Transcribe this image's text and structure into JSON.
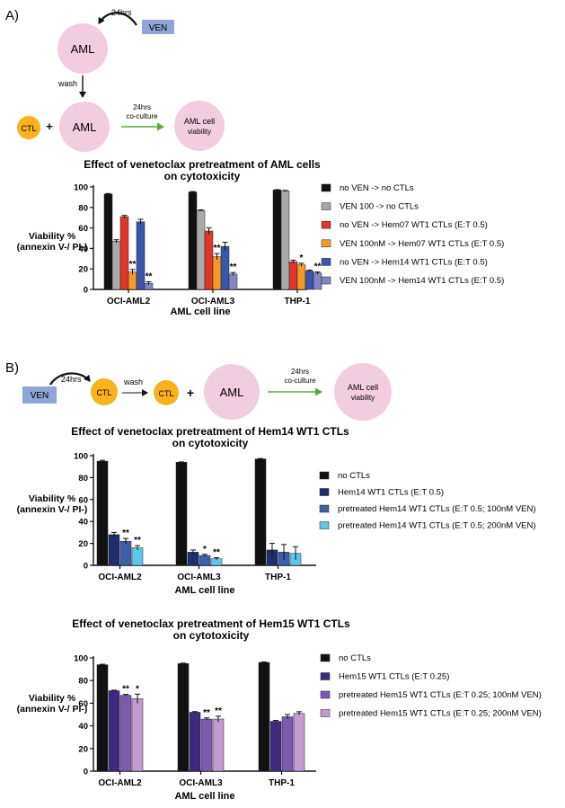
{
  "panel_a": {
    "label": "A)",
    "schematic": {
      "aml_top": "AML",
      "hrs_top": "24hrs",
      "ven": "VEN",
      "wash": "wash",
      "ctl": "CTL",
      "plus": "+",
      "aml_bottom": "AML",
      "coculture_hrs": "24hrs",
      "coculture": "co-culture",
      "viability_l1": "AML cell",
      "viability_l2": "viability"
    }
  },
  "panel_b": {
    "label": "B)",
    "schematic": {
      "ven": "VEN",
      "hrs": "24hrs",
      "ctl1": "CTL",
      "wash": "wash",
      "ctl2": "CTL",
      "plus": "+",
      "aml": "AML",
      "coculture_hrs": "24hrs",
      "coculture": "co-culture",
      "viability_l1": "AML cell",
      "viability_l2": "viability"
    }
  },
  "colors": {
    "aml_circle": "#f2cde0",
    "ctl_circle": "#f7b21c",
    "ven_box": "#8ea5d5",
    "arrow_green": "#58a83e"
  },
  "chart_data": [
    {
      "type": "bar",
      "title": [
        "Effect of venetoclax pretreatment of AML cells",
        "on cytotoxicity"
      ],
      "xlabel": "AML cell line",
      "ylabel": [
        "Viability %",
        "(annexin V-/ PI-)"
      ],
      "ylim": [
        0,
        100
      ],
      "yticks": [
        "0",
        "20",
        "40",
        "60",
        "80",
        "100"
      ],
      "categories": [
        "OCI-AML2",
        "OCI-AML3",
        "THP-1"
      ],
      "legend_position": "right",
      "series": [
        {
          "name": "no VEN -> no CTLs",
          "color": "#111111",
          "values": [
            93,
            95,
            97
          ],
          "errors": [
            0.6,
            0.5,
            0.4
          ],
          "sig": [
            "",
            "",
            ""
          ]
        },
        {
          "name": "VEN 100 -> no CTLs",
          "color": "#a9a9a9",
          "values": [
            47,
            77,
            96
          ],
          "errors": [
            1.5,
            0.6,
            0.6
          ],
          "sig": [
            "",
            "",
            ""
          ]
        },
        {
          "name": "no VEN -> Hem07 WT1 CTLs (E:T 0.5)",
          "color": "#e0352b",
          "values": [
            71,
            57,
            27
          ],
          "errors": [
            1.2,
            3,
            1.5
          ],
          "sig": [
            "",
            "",
            ""
          ]
        },
        {
          "name": "VEN 100nM -> Hem07 WT1 CTLs (E:T 0.5)",
          "color": "#f39a2a",
          "values": [
            17,
            32,
            24
          ],
          "errors": [
            2.5,
            3,
            1.5
          ],
          "sig": [
            "**",
            "**",
            "*"
          ]
        },
        {
          "name": "no VEN -> Hem14 WT1 CTLs (E:T 0.5)",
          "color": "#3a56a8",
          "values": [
            66,
            42,
            18
          ],
          "errors": [
            2.5,
            4,
            0.8
          ],
          "sig": [
            "",
            "",
            ""
          ]
        },
        {
          "name": "VEN 100nM -> Hem14 WT1 CTLs (E:T 0.5)",
          "color": "#8088c4",
          "values": [
            6,
            15,
            16
          ],
          "errors": [
            1.5,
            1.5,
            1
          ],
          "sig": [
            "**",
            "**",
            "**"
          ]
        }
      ]
    },
    {
      "type": "bar",
      "title": [
        "Effect of venetoclax pretreatment of Hem14 WT1 CTLs",
        "on cytotoxicity"
      ],
      "xlabel": "AML cell line",
      "ylabel": [
        "Viability %",
        "(annexin V-/ PI-)"
      ],
      "ylim": [
        0,
        100
      ],
      "yticks": [
        "0",
        "20",
        "40",
        "60",
        "80",
        "100"
      ],
      "categories": [
        "OCI-AML2",
        "OCI-AML3",
        "THP-1"
      ],
      "legend_position": "right",
      "series": [
        {
          "name": "no CTLs",
          "color": "#111111",
          "values": [
            95,
            94,
            97
          ],
          "errors": [
            0.8,
            0.3,
            0.4
          ],
          "sig": [
            "",
            "",
            ""
          ]
        },
        {
          "name": "Hem14 WT1 CTLs (E:T 0.5)",
          "color": "#1e2e6e",
          "values": [
            28,
            12,
            14
          ],
          "errors": [
            2,
            2,
            6
          ],
          "sig": [
            "",
            "",
            ""
          ]
        },
        {
          "name": "pretreated Hem14 WT1 CTLs (E:T 0.5; 100nM VEN)",
          "color": "#3f5fa8",
          "values": [
            22,
            9,
            12
          ],
          "errors": [
            2.5,
            1,
            7
          ],
          "sig": [
            "**",
            "*",
            ""
          ]
        },
        {
          "name": "pretreated Hem14 WT1 CTLs (E:T 0.5; 200nM VEN)",
          "color": "#5ec6ea",
          "values": [
            16,
            6,
            11
          ],
          "errors": [
            2,
            1,
            6
          ],
          "sig": [
            "**",
            "**",
            ""
          ]
        }
      ]
    },
    {
      "type": "bar",
      "title": [
        "Effect of venetoclax pretreatment of Hem15 WT1 CTLs",
        "on cytotoxicity"
      ],
      "xlabel": "AML cell line",
      "ylabel": [
        "Viability %",
        "(annexin V-/ PI-)"
      ],
      "ylim": [
        0,
        100
      ],
      "yticks": [
        "0",
        "20",
        "40",
        "60",
        "80",
        "100"
      ],
      "categories": [
        "OCI-AML2",
        "OCI-AML3",
        "THP-1"
      ],
      "legend_position": "right",
      "series": [
        {
          "name": "no CTLs",
          "color": "#111111",
          "values": [
            94,
            95,
            96
          ],
          "errors": [
            0.4,
            0.4,
            0.4
          ],
          "sig": [
            "",
            "",
            ""
          ]
        },
        {
          "name": "Hem15 WT1 CTLs (E:T 0.25)",
          "color": "#3e2a7e",
          "values": [
            71,
            52,
            44
          ],
          "errors": [
            0.5,
            0.6,
            0.8
          ],
          "sig": [
            "",
            "",
            ""
          ]
        },
        {
          "name": "pretreated Hem15 WT1 CTLs (E:T 0.25; 100nM VEN)",
          "color": "#7a5bb0",
          "values": [
            67,
            46,
            48
          ],
          "errors": [
            0.8,
            1,
            2
          ],
          "sig": [
            "**",
            "**",
            ""
          ]
        },
        {
          "name": "pretreated Hem15 WT1 CTLs (E:T 0.25; 200nM VEN)",
          "color": "#c29bd0",
          "values": [
            64,
            46,
            51
          ],
          "errors": [
            4,
            2.5,
            1.5
          ],
          "sig": [
            "*",
            "**",
            ""
          ]
        }
      ]
    }
  ]
}
